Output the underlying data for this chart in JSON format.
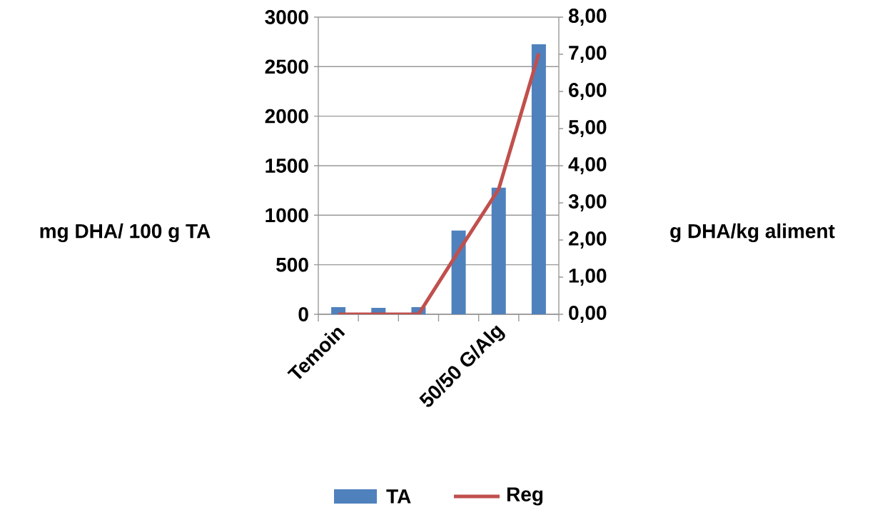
{
  "chart_data": {
    "type": "bar",
    "categories": [
      "Temoin",
      null,
      null,
      null,
      "50/50 G/Alg",
      null
    ],
    "ylabel": "mg DHA/ 100 g TA",
    "y2label": "g DHA/kg aliment",
    "ylim": [
      0,
      3000
    ],
    "yticks": [
      0,
      500,
      1000,
      1500,
      2000,
      2500,
      3000
    ],
    "y2lim": [
      0,
      8
    ],
    "y2ticks": [
      {
        "value": 0,
        "label": "0,00"
      },
      {
        "value": 1,
        "label": "1,00"
      },
      {
        "value": 2,
        "label": "2,00"
      },
      {
        "value": 3,
        "label": "3,00"
      },
      {
        "value": 4,
        "label": "4,00"
      },
      {
        "value": 5,
        "label": "5,00"
      },
      {
        "value": 6,
        "label": "6,00"
      },
      {
        "value": 7,
        "label": "7,00"
      },
      {
        "value": 8,
        "label": "8,00"
      }
    ],
    "grid": "y",
    "legend": "bottom",
    "series": [
      {
        "name": "TA",
        "color": "#4f81bd",
        "values": [
          72,
          65,
          72,
          846,
          1278,
          2725
        ]
      },
      {
        "name": "Reg",
        "type": "line",
        "axis": "y2",
        "color": "#c0504d",
        "values": [
          0,
          0,
          0,
          1.7,
          3.37,
          7.02
        ]
      }
    ]
  }
}
